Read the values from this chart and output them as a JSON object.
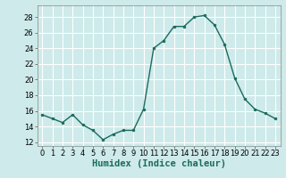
{
  "x": [
    0,
    1,
    2,
    3,
    4,
    5,
    6,
    7,
    8,
    9,
    10,
    11,
    12,
    13,
    14,
    15,
    16,
    17,
    18,
    19,
    20,
    21,
    22,
    23
  ],
  "y": [
    15.5,
    15.0,
    14.5,
    15.5,
    14.2,
    13.5,
    12.3,
    13.0,
    13.5,
    13.5,
    16.2,
    24.0,
    25.0,
    26.8,
    26.8,
    28.0,
    28.2,
    27.0,
    24.5,
    20.2,
    17.5,
    16.2,
    15.7,
    15.0
  ],
  "xlabel": "Humidex (Indice chaleur)",
  "xlim": [
    -0.5,
    23.5
  ],
  "ylim": [
    11.5,
    29.5
  ],
  "yticks": [
    12,
    14,
    16,
    18,
    20,
    22,
    24,
    26,
    28
  ],
  "xticks": [
    0,
    1,
    2,
    3,
    4,
    5,
    6,
    7,
    8,
    9,
    10,
    11,
    12,
    13,
    14,
    15,
    16,
    17,
    18,
    19,
    20,
    21,
    22,
    23
  ],
  "line_color": "#1a6b5e",
  "marker_size": 2.0,
  "line_width": 1.0,
  "bg_color": "#ceeaea",
  "grid_color": "#ffffff",
  "tick_label_fontsize": 6.0,
  "xlabel_fontsize": 7.5
}
